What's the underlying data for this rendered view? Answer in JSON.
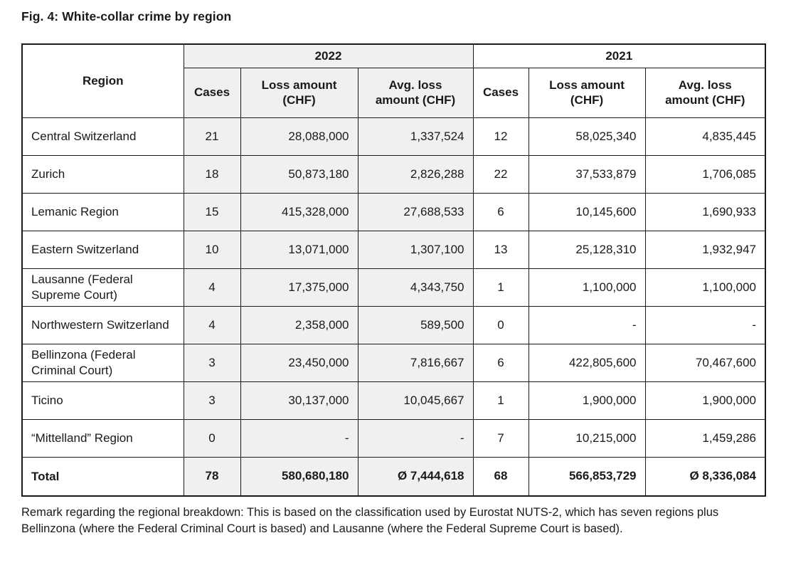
{
  "title": "Fig. 4: White-collar crime by region",
  "table": {
    "region_header": "Region",
    "year_groups": [
      {
        "year": "2022"
      },
      {
        "year": "2021"
      }
    ],
    "sub_headers": {
      "cases": "Cases",
      "loss": "Loss amount (CHF)",
      "avg": "Avg. loss amount (CHF)"
    },
    "rows": [
      {
        "region": "Central Switzerland",
        "y2022": {
          "cases": "21",
          "loss": "28,088,000",
          "avg": "1,337,524"
        },
        "y2021": {
          "cases": "12",
          "loss": "58,025,340",
          "avg": "4,835,445"
        }
      },
      {
        "region": "Zurich",
        "y2022": {
          "cases": "18",
          "loss": "50,873,180",
          "avg": "2,826,288"
        },
        "y2021": {
          "cases": "22",
          "loss": "37,533,879",
          "avg": "1,706,085"
        }
      },
      {
        "region": "Lemanic Region",
        "y2022": {
          "cases": "15",
          "loss": "415,328,000",
          "avg": "27,688,533"
        },
        "y2021": {
          "cases": "6",
          "loss": "10,145,600",
          "avg": "1,690,933"
        }
      },
      {
        "region": "Eastern Switzerland",
        "y2022": {
          "cases": "10",
          "loss": "13,071,000",
          "avg": "1,307,100"
        },
        "y2021": {
          "cases": "13",
          "loss": "25,128,310",
          "avg": "1,932,947"
        }
      },
      {
        "region": "Lausanne (Federal Supreme Court)",
        "y2022": {
          "cases": "4",
          "loss": "17,375,000",
          "avg": "4,343,750"
        },
        "y2021": {
          "cases": "1",
          "loss": "1,100,000",
          "avg": "1,100,000"
        }
      },
      {
        "region": "Northwestern Switzerland",
        "y2022": {
          "cases": "4",
          "loss": "2,358,000",
          "avg": "589,500"
        },
        "y2021": {
          "cases": "0",
          "loss": "-",
          "avg": "-"
        }
      },
      {
        "region": "Bellinzona (Federal Criminal Court)",
        "y2022": {
          "cases": "3",
          "loss": "23,450,000",
          "avg": "7,816,667"
        },
        "y2021": {
          "cases": "6",
          "loss": "422,805,600",
          "avg": "70,467,600"
        }
      },
      {
        "region": "Ticino",
        "y2022": {
          "cases": "3",
          "loss": "30,137,000",
          "avg": "10,045,667"
        },
        "y2021": {
          "cases": "1",
          "loss": "1,900,000",
          "avg": "1,900,000"
        }
      },
      {
        "region": "“Mittelland” Region",
        "y2022": {
          "cases": "0",
          "loss": "-",
          "avg": "-"
        },
        "y2021": {
          "cases": "7",
          "loss": "10,215,000",
          "avg": "1,459,286"
        }
      }
    ],
    "total": {
      "label": "Total",
      "y2022": {
        "cases": "78",
        "loss": "580,680,180",
        "avg": "Ø 7,444,618"
      },
      "y2021": {
        "cases": "68",
        "loss": "566,853,729",
        "avg": "Ø 8,336,084"
      }
    }
  },
  "remark": "Remark regarding the regional breakdown: This is based on the classification used by Eurostat NUTS-2, which has seven regions plus Bellinzona (where the Federal Criminal Court is based) and Lausanne (where the Federal Supreme Court is based).",
  "colors": {
    "shaded_column_bg": "#f0f0f0",
    "border": "#1a1a1a",
    "text": "#1a1a1a"
  }
}
